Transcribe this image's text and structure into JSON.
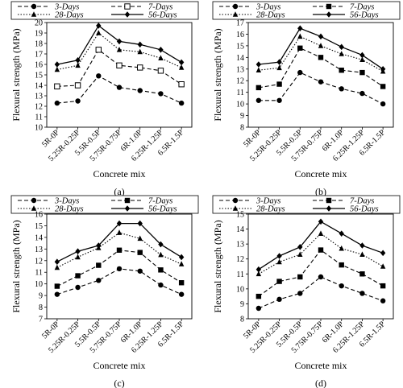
{
  "chart_data": [
    {
      "type": "line",
      "caption": "(a)",
      "xlabel": "Concrete mix",
      "ylabel": "Flexural strength (MPa)",
      "ylim": [
        10,
        20
      ],
      "yticks": [
        10,
        11,
        12,
        13,
        14,
        15,
        16,
        17,
        18,
        19,
        20
      ],
      "categories": [
        "5R-0P",
        "5.25R-0.25P",
        "5.5R-0.5P",
        "5.75R-0.75P",
        "6R-1.0P",
        "6.25R-1.25P",
        "6.5R-1.5P"
      ],
      "legend_position": "top",
      "series": [
        {
          "name": "3-Days",
          "values": [
            12.3,
            12.5,
            14.9,
            13.8,
            13.5,
            13.2,
            12.3
          ],
          "line": "dashed",
          "marker": "circle"
        },
        {
          "name": "7-Days",
          "values": [
            13.9,
            14.0,
            17.4,
            15.9,
            15.7,
            15.4,
            14.1
          ],
          "line": "dashed",
          "marker": "square-open"
        },
        {
          "name": "28-Days",
          "values": [
            15.5,
            15.9,
            19.0,
            17.4,
            17.2,
            16.6,
            15.7
          ],
          "line": "dotted",
          "marker": "triangle"
        },
        {
          "name": "56-Days",
          "values": [
            16.0,
            16.4,
            19.7,
            18.2,
            17.9,
            17.4,
            16.2
          ],
          "line": "solid",
          "marker": "diamond"
        }
      ]
    },
    {
      "type": "line",
      "caption": "(b)",
      "xlabel": "Concrete mix",
      "ylabel": "Flexural strength (MPa)",
      "ylim": [
        8,
        17
      ],
      "yticks": [
        8,
        9,
        10,
        11,
        12,
        13,
        14,
        15,
        16,
        17
      ],
      "categories": [
        "5R-0P",
        "5.25R-0.25P",
        "5.5R-0.5P",
        "5.75R-0.75P",
        "6R-1.0P",
        "6.25R-1.25P",
        "6.5R-1.5P"
      ],
      "legend_position": "top",
      "series": [
        {
          "name": "3-Days",
          "values": [
            10.3,
            10.3,
            12.7,
            11.9,
            11.3,
            10.9,
            10.0
          ],
          "line": "dashed",
          "marker": "circle"
        },
        {
          "name": "7-Days",
          "values": [
            11.4,
            11.7,
            14.8,
            14.0,
            12.9,
            12.7,
            11.5
          ],
          "line": "dashed",
          "marker": "square"
        },
        {
          "name": "28-Days",
          "values": [
            12.9,
            13.1,
            15.8,
            15.0,
            14.3,
            13.8,
            12.8
          ],
          "line": "dotted",
          "marker": "triangle"
        },
        {
          "name": "56-Days",
          "values": [
            13.4,
            13.6,
            16.5,
            15.8,
            14.9,
            14.2,
            13.0
          ],
          "line": "solid",
          "marker": "diamond"
        }
      ]
    },
    {
      "type": "line",
      "caption": "(c)",
      "xlabel": "Concrete mix",
      "ylabel": "Flexural strength (MPa)",
      "ylim": [
        7,
        16
      ],
      "yticks": [
        7,
        8,
        9,
        10,
        11,
        12,
        13,
        14,
        15,
        16
      ],
      "categories": [
        "5R-0P",
        "5.25R-0.25P",
        "5.5R-0.5P",
        "5.75R-0.75P",
        "6R-1.0P",
        "6.25R-1.25P",
        "6.5R-1.5P"
      ],
      "legend_position": "top",
      "series": [
        {
          "name": "3-Days",
          "values": [
            9.1,
            9.7,
            10.3,
            11.3,
            11.1,
            9.9,
            9.1
          ],
          "line": "dashed",
          "marker": "circle"
        },
        {
          "name": "7-Days",
          "values": [
            9.8,
            10.7,
            11.6,
            12.9,
            12.7,
            11.2,
            10.1
          ],
          "line": "dashed",
          "marker": "square"
        },
        {
          "name": "28-Days",
          "values": [
            11.4,
            12.3,
            13.1,
            14.4,
            13.9,
            12.5,
            11.7
          ],
          "line": "dotted",
          "marker": "triangle"
        },
        {
          "name": "56-Days",
          "values": [
            11.9,
            12.8,
            13.3,
            15.2,
            15.2,
            13.4,
            12.3
          ],
          "line": "solid",
          "marker": "diamond"
        }
      ]
    },
    {
      "type": "line",
      "caption": "(d)",
      "xlabel": "Concrete mix",
      "ylabel": "Flexural strength (MPa)",
      "ylim": [
        8,
        15
      ],
      "yticks": [
        8,
        9,
        10,
        11,
        12,
        13,
        14,
        15
      ],
      "categories": [
        "5R-0P",
        "5.25R-0.25P",
        "5.5R-0.5P",
        "5.75R-0.75P",
        "6R-1.0P",
        "6.25R-1.25P",
        "6.5R-1.5P"
      ],
      "legend_position": "top",
      "series": [
        {
          "name": "3-Days",
          "values": [
            8.7,
            9.3,
            9.7,
            10.8,
            10.2,
            9.7,
            9.2
          ],
          "line": "dashed",
          "marker": "circle"
        },
        {
          "name": "7-Days",
          "values": [
            9.5,
            10.5,
            10.8,
            12.6,
            11.6,
            11.0,
            10.2
          ],
          "line": "dashed",
          "marker": "square"
        },
        {
          "name": "28-Days",
          "values": [
            11.0,
            11.8,
            12.3,
            13.7,
            12.7,
            12.3,
            11.5
          ],
          "line": "dotted",
          "marker": "triangle"
        },
        {
          "name": "56-Days",
          "values": [
            11.3,
            12.2,
            12.8,
            14.5,
            13.7,
            12.9,
            12.4
          ],
          "line": "solid",
          "marker": "diamond"
        }
      ]
    }
  ]
}
